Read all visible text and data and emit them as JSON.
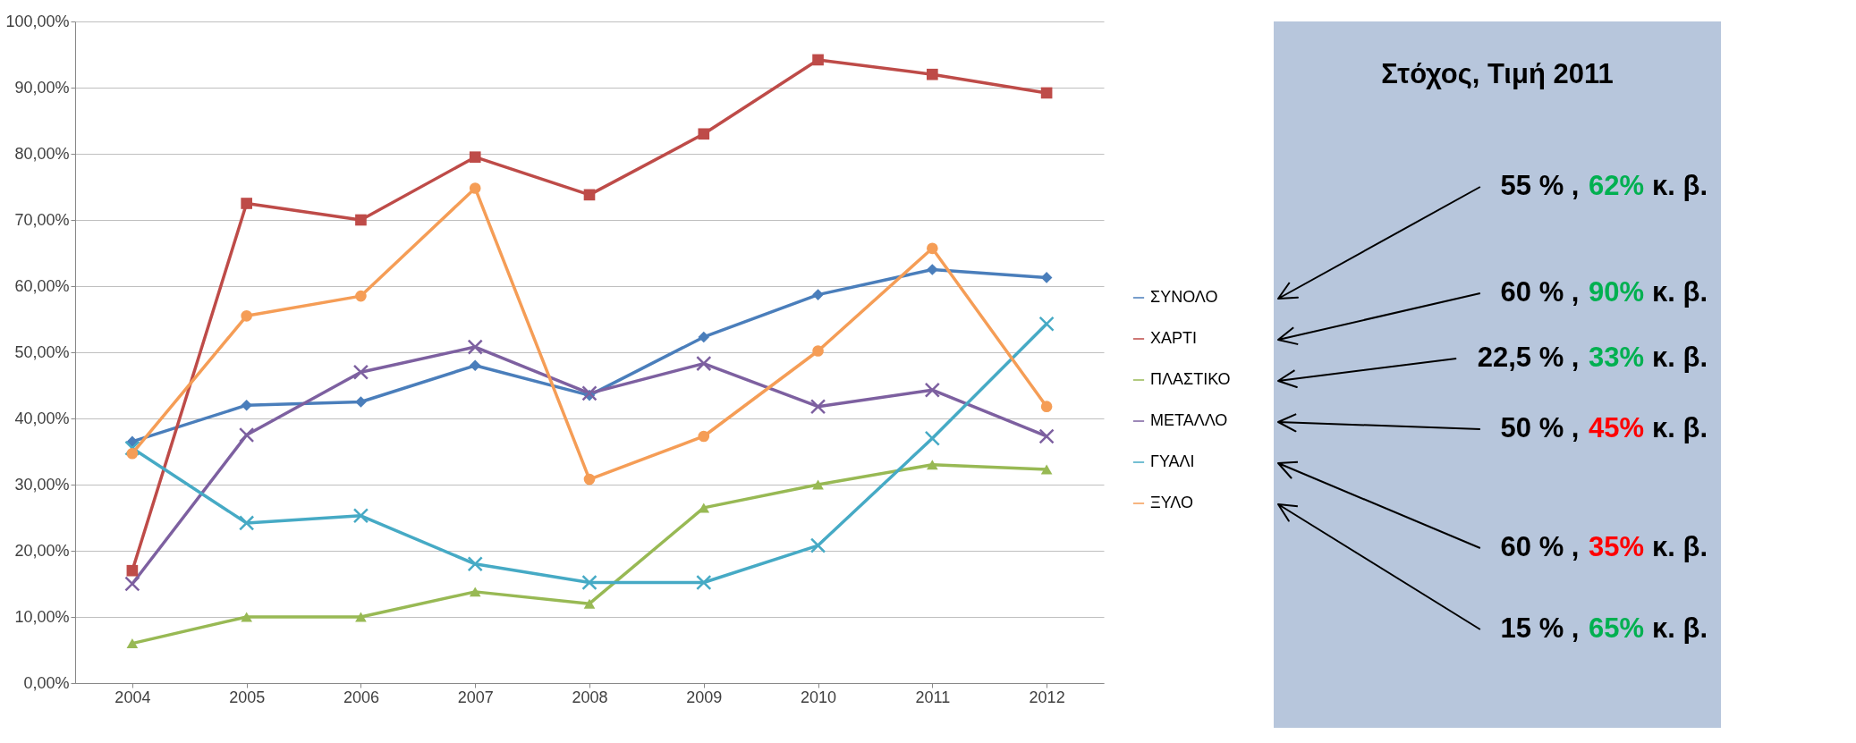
{
  "chart_data": [
    {
      "type": "line",
      "categories": [
        "2004",
        "2005",
        "2006",
        "2007",
        "2008",
        "2009",
        "2010",
        "2011",
        "2012"
      ],
      "ylim": [
        0,
        100
      ],
      "yticks": [
        {
          "value": 0,
          "label": "0,00%"
        },
        {
          "value": 10,
          "label": "10,00%"
        },
        {
          "value": 20,
          "label": "20,00%"
        },
        {
          "value": 30,
          "label": "30,00%"
        },
        {
          "value": 40,
          "label": "40,00%"
        },
        {
          "value": 50,
          "label": "50,00%"
        },
        {
          "value": 60,
          "label": "60,00%"
        },
        {
          "value": 70,
          "label": "70,00%"
        },
        {
          "value": 80,
          "label": "80,00%"
        },
        {
          "value": 90,
          "label": "90,00%"
        },
        {
          "value": 100,
          "label": "100,00%"
        }
      ],
      "grid": "y",
      "legend": "right",
      "line_style": "solid",
      "series": [
        {
          "name": "ΣΥΝΟΛΟ",
          "color": "#4a7ebb",
          "marker": "diamond",
          "values": [
            36.5,
            42,
            42.5,
            48,
            43.5,
            52.3,
            58.7,
            62.5,
            61.3
          ]
        },
        {
          "name": "ΧΑΡΤΙ",
          "color": "#be4b48",
          "marker": "square",
          "values": [
            17,
            72.5,
            70,
            79.5,
            73.8,
            83,
            94.2,
            92,
            89.2
          ]
        },
        {
          "name": "ΠΛΑΣΤΙΚΟ",
          "color": "#98b954",
          "marker": "triangle",
          "values": [
            6,
            10,
            10,
            13.8,
            12,
            26.5,
            30,
            33,
            32.3
          ]
        },
        {
          "name": "ΜΕΤΑΛΛΟ",
          "color": "#7d60a0",
          "marker": "cross",
          "values": [
            15,
            37.5,
            47,
            50.8,
            43.8,
            48.3,
            41.8,
            44.3,
            37.3
          ]
        },
        {
          "name": "ΓΥΑΛΙ",
          "color": "#46aac5",
          "marker": "cross",
          "values": [
            35.5,
            24.2,
            25.3,
            18,
            15.2,
            15.2,
            20.8,
            37,
            54.3
          ]
        },
        {
          "name": "ΞΥΛΟ",
          "color": "#f59d56",
          "marker": "circle",
          "values": [
            34.7,
            55.5,
            58.5,
            74.8,
            30.8,
            37.3,
            50.2,
            65.7,
            41.8
          ]
        }
      ]
    },
    {
      "type": "other",
      "title": "Στόχος, Τιμή 2011",
      "annotations": [
        "55 % ,",
        "62%",
        "κ. β.",
        "60 % ,",
        "90%",
        "κ. β.",
        "22,5 % ,",
        "33%",
        "κ. β.",
        "50 % ,",
        "45%",
        "κ. β.",
        "60 % ,",
        "35%",
        "κ. β.",
        "15 % ,",
        "65%",
        "κ. β."
      ],
      "colors": [
        "#000000",
        "#00b050",
        "#000000",
        "#000000",
        "#00b050",
        "#000000",
        "#000000",
        "#00b050",
        "#000000",
        "#000000",
        "#ff0000",
        "#000000",
        "#000000",
        "#ff0000",
        "#000000",
        "#000000",
        "#00b050",
        "#000000"
      ]
    }
  ]
}
